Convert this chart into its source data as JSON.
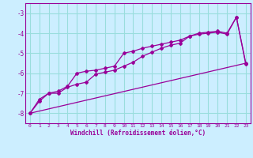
{
  "xlabel": "Windchill (Refroidissement éolien,°C)",
  "background_color": "#cceeff",
  "grid_color": "#99dddd",
  "line_color": "#990099",
  "xlim": [
    -0.5,
    23.5
  ],
  "ylim": [
    -8.5,
    -2.5
  ],
  "yticks": [
    -8,
    -7,
    -6,
    -5,
    -4,
    -3
  ],
  "xticks": [
    0,
    1,
    2,
    3,
    4,
    5,
    6,
    7,
    8,
    9,
    10,
    11,
    12,
    13,
    14,
    15,
    16,
    17,
    18,
    19,
    20,
    21,
    22,
    23
  ],
  "line1_x": [
    0,
    1,
    2,
    3,
    4,
    5,
    6,
    7,
    8,
    9,
    10,
    11,
    12,
    13,
    14,
    15,
    16,
    17,
    18,
    19,
    20,
    21,
    22,
    23
  ],
  "line1_y": [
    -8.0,
    -7.4,
    -7.0,
    -6.9,
    -6.65,
    -6.0,
    -5.9,
    -5.85,
    -5.75,
    -5.65,
    -5.0,
    -4.9,
    -4.75,
    -4.65,
    -4.55,
    -4.45,
    -4.35,
    -4.15,
    -4.05,
    -4.0,
    -3.95,
    -4.05,
    -3.2,
    -5.55
  ],
  "line2_x": [
    0,
    1,
    2,
    3,
    4,
    5,
    6,
    7,
    8,
    9,
    10,
    11,
    12,
    13,
    14,
    15,
    16,
    17,
    18,
    19,
    20,
    21,
    22,
    23
  ],
  "line2_y": [
    -8.0,
    -7.3,
    -7.0,
    -7.0,
    -6.7,
    -6.55,
    -6.45,
    -6.05,
    -5.95,
    -5.85,
    -5.65,
    -5.45,
    -5.15,
    -4.95,
    -4.75,
    -4.6,
    -4.5,
    -4.15,
    -4.0,
    -3.95,
    -3.9,
    -4.0,
    -3.2,
    -5.5
  ],
  "line3_x": [
    0,
    23
  ],
  "line3_y": [
    -8.0,
    -5.5
  ]
}
